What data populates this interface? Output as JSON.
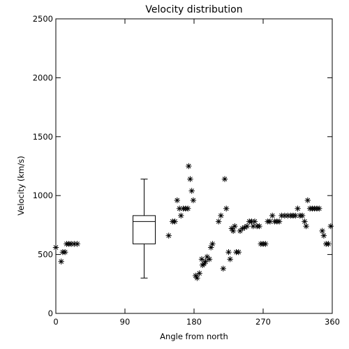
{
  "chart_data": {
    "type": "scatter",
    "title": "Velocity distribution",
    "xlabel": "Angle from north",
    "ylabel": "Velocity (km/s)",
    "xlim": [
      0,
      360
    ],
    "ylim": [
      0,
      2500
    ],
    "xticks": [
      0,
      90,
      180,
      270,
      360
    ],
    "yticks": [
      0,
      500,
      1000,
      1500,
      2000,
      2500
    ],
    "grid": false,
    "marker": "asterisk",
    "boxplot": {
      "x": 115,
      "min": 300,
      "q1": 590,
      "median": 780,
      "q3": 830,
      "max": 1140
    },
    "points": [
      [
        0,
        560
      ],
      [
        7,
        440
      ],
      [
        9,
        520
      ],
      [
        12,
        520
      ],
      [
        14,
        590
      ],
      [
        17,
        590
      ],
      [
        20,
        590
      ],
      [
        24,
        590
      ],
      [
        28,
        590
      ],
      [
        147,
        660
      ],
      [
        152,
        780
      ],
      [
        155,
        780
      ],
      [
        158,
        960
      ],
      [
        161,
        890
      ],
      [
        163,
        830
      ],
      [
        166,
        890
      ],
      [
        169,
        890
      ],
      [
        172,
        890
      ],
      [
        173,
        1250
      ],
      [
        175,
        1140
      ],
      [
        177,
        1040
      ],
      [
        179,
        960
      ],
      [
        182,
        320
      ],
      [
        184,
        300
      ],
      [
        187,
        340
      ],
      [
        190,
        460
      ],
      [
        191,
        410
      ],
      [
        193,
        420
      ],
      [
        195,
        440
      ],
      [
        197,
        480
      ],
      [
        200,
        460
      ],
      [
        202,
        560
      ],
      [
        204,
        590
      ],
      [
        212,
        780
      ],
      [
        215,
        830
      ],
      [
        218,
        380
      ],
      [
        220,
        1140
      ],
      [
        222,
        890
      ],
      [
        225,
        520
      ],
      [
        227,
        460
      ],
      [
        229,
        720
      ],
      [
        231,
        700
      ],
      [
        233,
        740
      ],
      [
        235,
        520
      ],
      [
        238,
        520
      ],
      [
        240,
        700
      ],
      [
        243,
        720
      ],
      [
        246,
        730
      ],
      [
        249,
        740
      ],
      [
        252,
        780
      ],
      [
        255,
        780
      ],
      [
        257,
        740
      ],
      [
        259,
        780
      ],
      [
        262,
        740
      ],
      [
        265,
        740
      ],
      [
        267,
        590
      ],
      [
        270,
        590
      ],
      [
        273,
        590
      ],
      [
        276,
        780
      ],
      [
        279,
        780
      ],
      [
        282,
        830
      ],
      [
        285,
        780
      ],
      [
        288,
        780
      ],
      [
        291,
        780
      ],
      [
        294,
        830
      ],
      [
        298,
        830
      ],
      [
        302,
        830
      ],
      [
        306,
        830
      ],
      [
        309,
        830
      ],
      [
        312,
        830
      ],
      [
        315,
        890
      ],
      [
        318,
        830
      ],
      [
        321,
        830
      ],
      [
        324,
        780
      ],
      [
        326,
        740
      ],
      [
        328,
        960
      ],
      [
        331,
        890
      ],
      [
        334,
        890
      ],
      [
        337,
        890
      ],
      [
        340,
        890
      ],
      [
        343,
        890
      ],
      [
        347,
        700
      ],
      [
        349,
        660
      ],
      [
        352,
        590
      ],
      [
        355,
        590
      ],
      [
        358,
        740
      ]
    ]
  }
}
